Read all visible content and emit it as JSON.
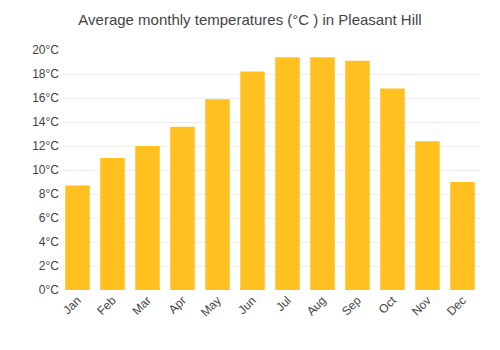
{
  "chart_data": {
    "type": "bar",
    "title": "Average monthly temperatures (°C ) in Pleasant Hill",
    "categories": [
      "Jan",
      "Feb",
      "Mar",
      "Apr",
      "May",
      "Jun",
      "Jul",
      "Aug",
      "Sep",
      "Oct",
      "Nov",
      "Dec"
    ],
    "values": [
      8.7,
      11.0,
      12.0,
      13.6,
      15.9,
      18.2,
      19.4,
      19.4,
      19.1,
      16.8,
      12.4,
      9.0
    ],
    "color": "#FFC020",
    "ylim": [
      0,
      20
    ],
    "yticks": [
      {
        "value": 0,
        "label": "0°C"
      },
      {
        "value": 2,
        "label": "2°C"
      },
      {
        "value": 4,
        "label": "4°C"
      },
      {
        "value": 6,
        "label": "6°C"
      },
      {
        "value": 8,
        "label": "8°C"
      },
      {
        "value": 10,
        "label": "10°C"
      },
      {
        "value": 12,
        "label": "12°C"
      },
      {
        "value": 14,
        "label": "14°C"
      },
      {
        "value": 16,
        "label": "16°C"
      },
      {
        "value": 18,
        "label": "18°C"
      },
      {
        "value": 20,
        "label": "20°C"
      }
    ],
    "grid": true
  }
}
